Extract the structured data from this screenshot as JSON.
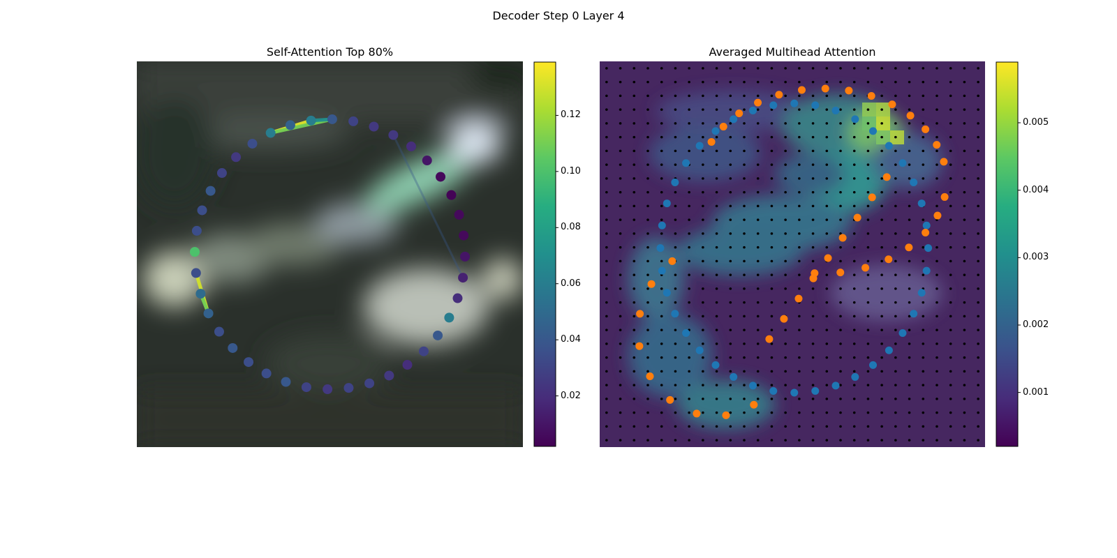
{
  "figure": {
    "title": "Decoder Step 0 Layer 4"
  },
  "chart_data": [
    {
      "type": "scatter",
      "title": "Self-Attention Top 80%",
      "description": "Ring of 40 query points over a blurred image, colored by attention weight; top links drawn as colored segments",
      "colormap": "viridis",
      "colorbar": {
        "range": [
          0.002,
          0.139
        ],
        "ticks": [
          0.02,
          0.04,
          0.06,
          0.08,
          0.1,
          0.12
        ],
        "tick_labels": [
          "0.02",
          "0.04",
          "0.06",
          "0.08",
          "0.10",
          "0.12"
        ]
      },
      "points": {
        "count": 40,
        "center": [
          0.5,
          0.5
        ],
        "radius": 0.35,
        "values": [
          0.06,
          0.045,
          0.06,
          0.04,
          0.03,
          0.025,
          0.025,
          0.02,
          0.01,
          0.005,
          0.003,
          0.005,
          0.005,
          0.01,
          0.015,
          0.02,
          0.06,
          0.04,
          0.03,
          0.02,
          0.025,
          0.03,
          0.03,
          0.025,
          0.03,
          0.04,
          0.035,
          0.035,
          0.04,
          0.035,
          0.045,
          0.05,
          0.035,
          0.1,
          0.035,
          0.035,
          0.04,
          0.03,
          0.025,
          0.035
        ]
      },
      "links": [
        {
          "from": 30,
          "to": 32,
          "value": 0.13
        },
        {
          "from": 30,
          "to": 31,
          "value": 0.11
        },
        {
          "from": 0,
          "to": 2,
          "value": 0.133
        },
        {
          "from": 0,
          "to": 3,
          "value": 0.11
        },
        {
          "from": 2,
          "to": 3,
          "value": 0.07
        },
        {
          "from": 6,
          "to": 14,
          "value": 0.04
        }
      ]
    },
    {
      "type": "heatmap",
      "title": "Averaged Multihead Attention",
      "colormap": "viridis",
      "grid": {
        "rows": 28,
        "cols": 28,
        "dots": "black"
      },
      "colorbar": {
        "range": [
          0.0002,
          0.0059
        ],
        "ticks": [
          0.001,
          0.002,
          0.003,
          0.004,
          0.005
        ],
        "tick_labels": [
          "0.001",
          "0.002",
          "0.003",
          "0.004",
          "0.005"
        ]
      },
      "series": [
        {
          "color": "#1f77b4",
          "description": "blue ring points (40)"
        },
        {
          "color": "#ff7f0e",
          "description": "orange S-curve points (40)"
        }
      ]
    }
  ]
}
